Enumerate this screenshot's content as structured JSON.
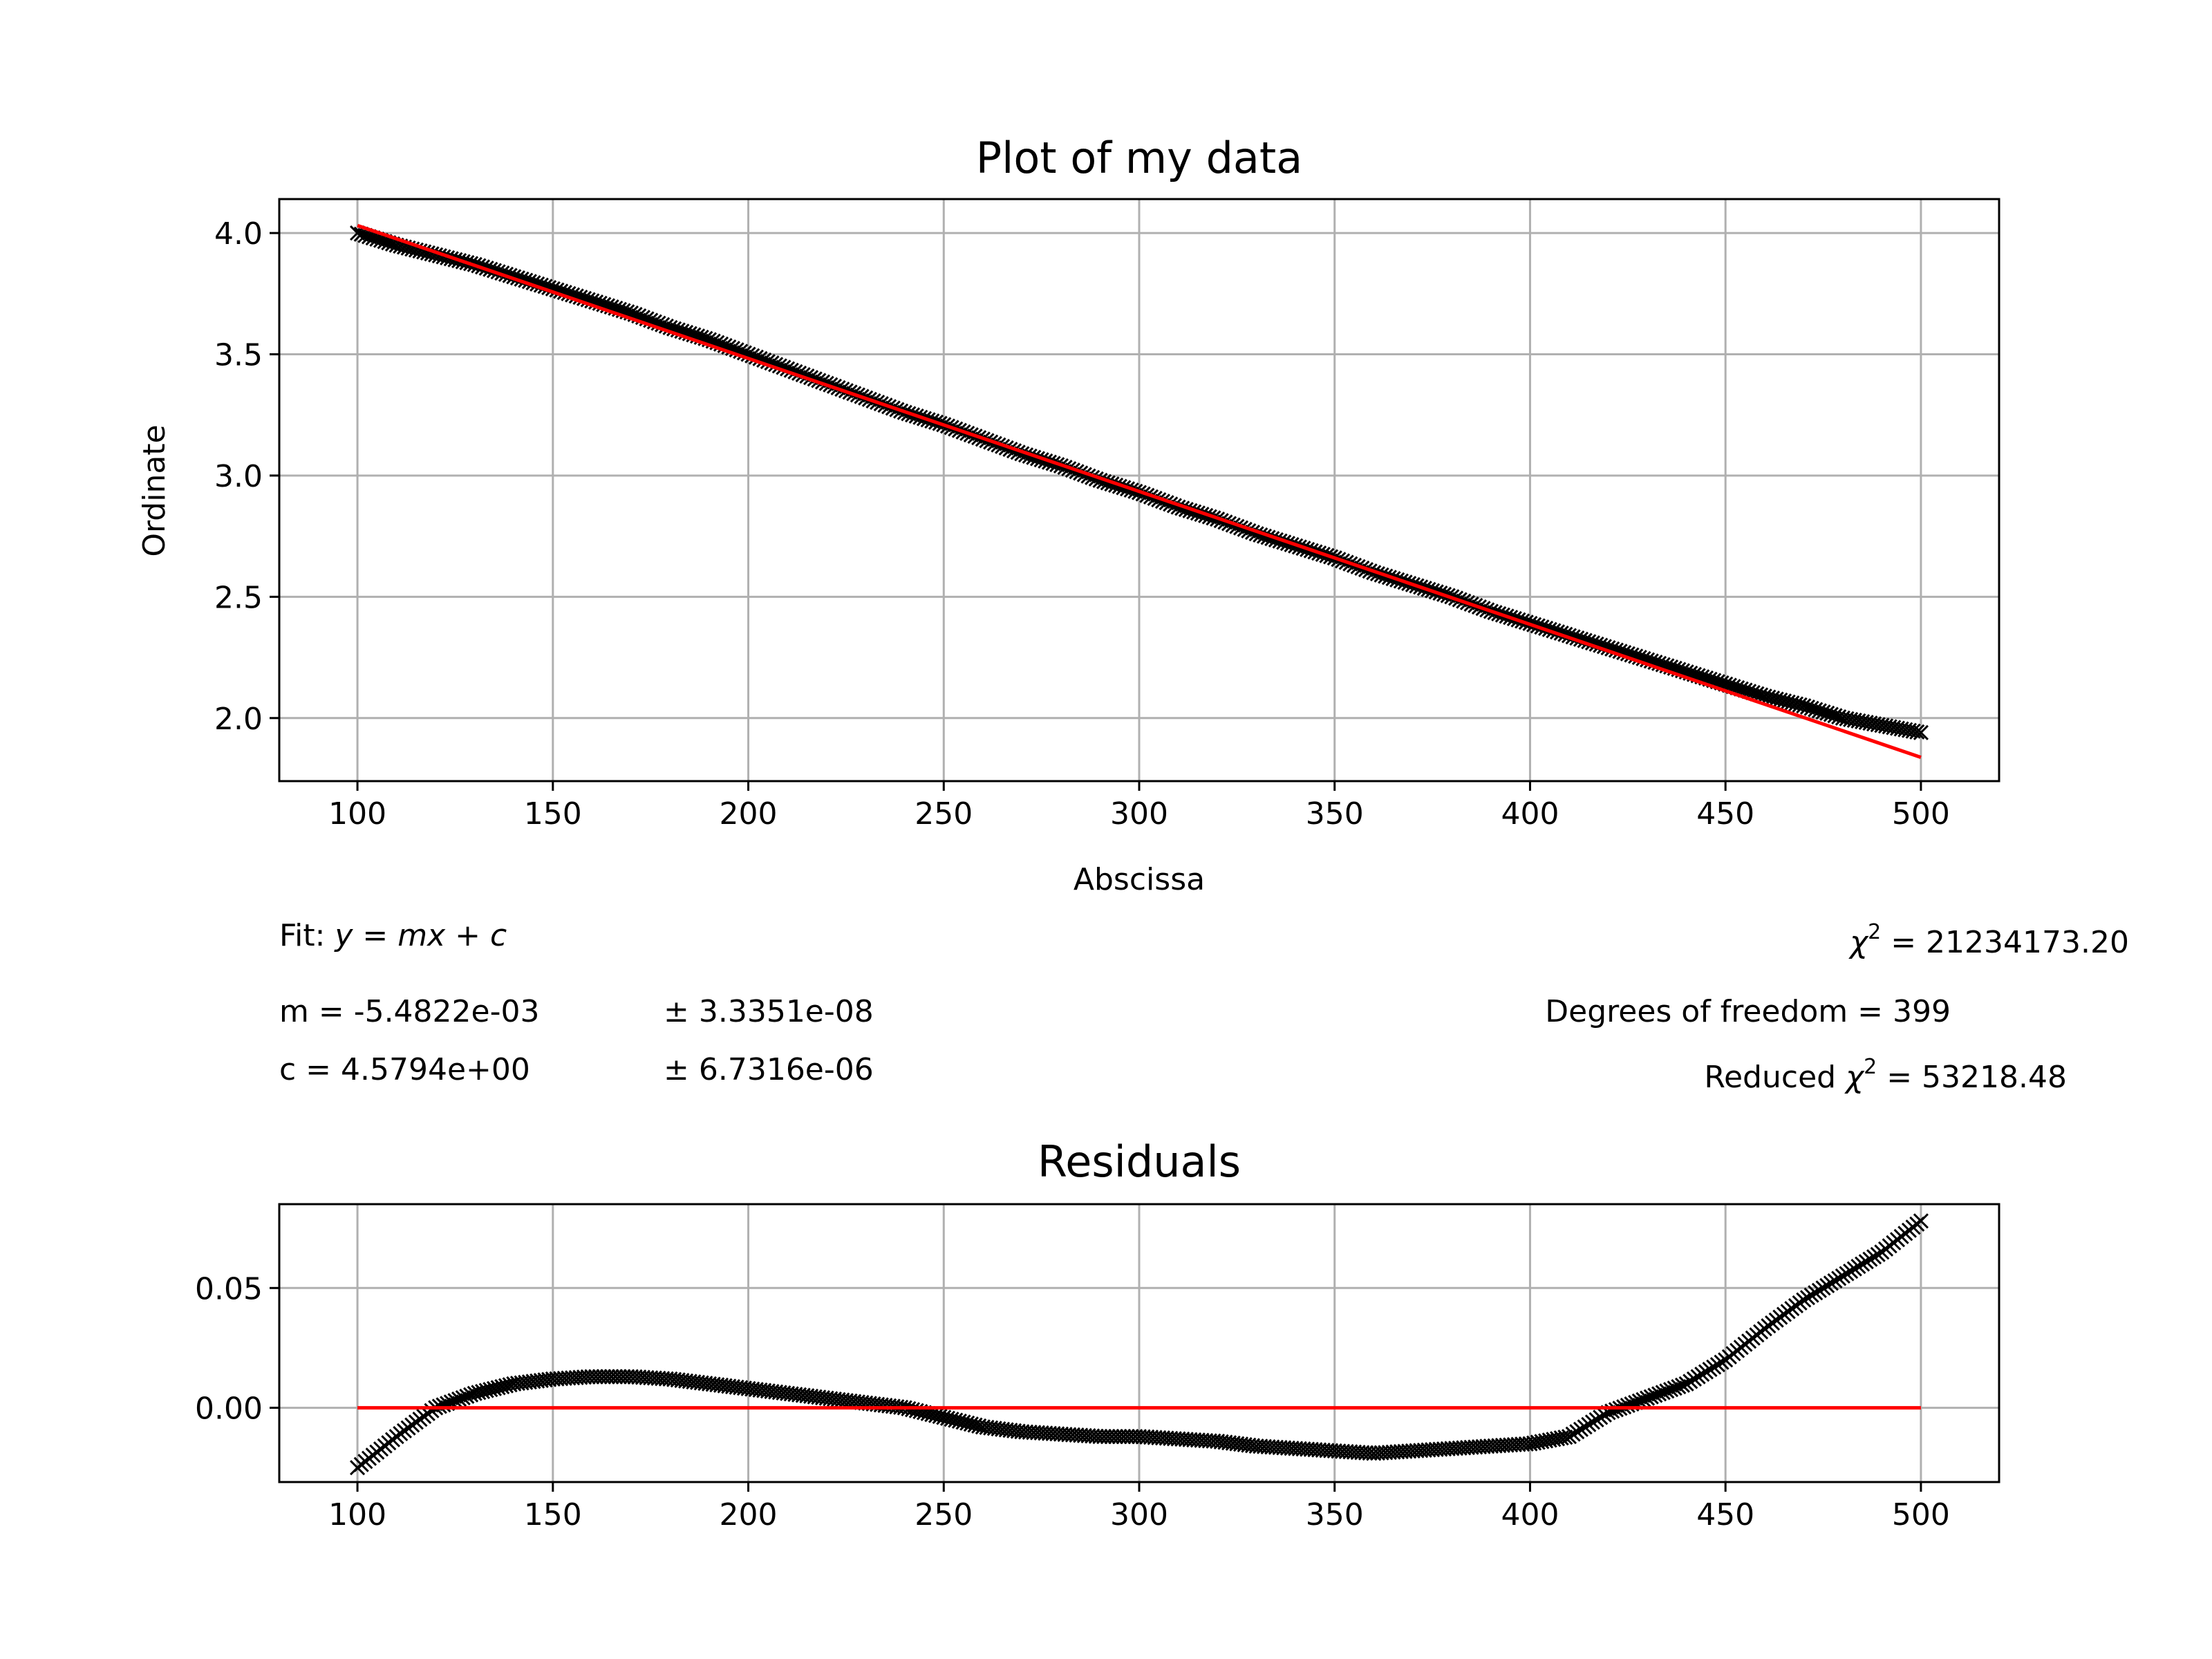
{
  "chart_data": [
    {
      "type": "scatter",
      "title": "Plot of my data",
      "xlabel": "Abscissa",
      "ylabel": "Ordinate",
      "xlim": [
        80,
        520
      ],
      "ylim": [
        1.74,
        4.14
      ],
      "xticks": [
        100,
        150,
        200,
        250,
        300,
        350,
        400,
        450,
        500
      ],
      "xtick_labels": [
        "100",
        "150",
        "200",
        "250",
        "300",
        "350",
        "400",
        "450",
        "500"
      ],
      "yticks": [
        2.0,
        2.5,
        3.0,
        3.5,
        4.0
      ],
      "ytick_labels": [
        "2.0",
        "2.5",
        "3.0",
        "3.5",
        "4.0"
      ],
      "grid": true,
      "marker": "x",
      "data_color": "#000000",
      "fit_color": "#ff0000",
      "series": [
        {
          "kind": "data",
          "x": [
            100,
            110,
            120,
            130,
            140,
            150,
            160,
            170,
            180,
            190,
            200,
            210,
            220,
            230,
            240,
            250,
            260,
            270,
            280,
            290,
            300,
            310,
            320,
            330,
            340,
            350,
            360,
            370,
            380,
            390,
            400,
            410,
            420,
            430,
            440,
            450,
            460,
            470,
            480,
            490,
            500
          ],
          "y": [
            4.0,
            3.95,
            3.91,
            3.87,
            3.82,
            3.77,
            3.72,
            3.67,
            3.61,
            3.56,
            3.5,
            3.44,
            3.38,
            3.32,
            3.26,
            3.21,
            3.15,
            3.09,
            3.04,
            2.98,
            2.93,
            2.87,
            2.82,
            2.76,
            2.71,
            2.66,
            2.6,
            2.55,
            2.5,
            2.44,
            2.39,
            2.34,
            2.29,
            2.24,
            2.19,
            2.14,
            2.09,
            2.05,
            2.0,
            1.97,
            1.94
          ]
        },
        {
          "kind": "fit",
          "x": [
            100,
            500
          ],
          "y": [
            4.031,
            1.838
          ]
        }
      ]
    },
    {
      "type": "scatter",
      "title": "Residuals",
      "xlabel": "",
      "ylabel": "",
      "xlim": [
        80,
        520
      ],
      "ylim": [
        -0.031,
        0.085
      ],
      "xticks": [
        100,
        150,
        200,
        250,
        300,
        350,
        400,
        450,
        500
      ],
      "xtick_labels": [
        "100",
        "150",
        "200",
        "250",
        "300",
        "350",
        "400",
        "450",
        "500"
      ],
      "yticks": [
        0.0,
        0.05
      ],
      "ytick_labels": [
        "0.00",
        "0.05"
      ],
      "grid": true,
      "marker": "x",
      "data_color": "#000000",
      "fit_color": "#ff0000",
      "series": [
        {
          "kind": "data",
          "x": [
            100,
            110,
            120,
            130,
            140,
            150,
            160,
            170,
            180,
            190,
            200,
            210,
            220,
            230,
            240,
            250,
            260,
            270,
            280,
            290,
            300,
            310,
            320,
            330,
            340,
            350,
            360,
            370,
            380,
            390,
            400,
            410,
            420,
            430,
            440,
            450,
            460,
            470,
            480,
            490,
            500
          ],
          "y": [
            -0.025,
            -0.012,
            0.0,
            0.006,
            0.01,
            0.012,
            0.013,
            0.013,
            0.012,
            0.01,
            0.008,
            0.006,
            0.004,
            0.002,
            0.0,
            -0.004,
            -0.008,
            -0.01,
            -0.011,
            -0.012,
            -0.012,
            -0.013,
            -0.014,
            -0.016,
            -0.017,
            -0.018,
            -0.019,
            -0.018,
            -0.017,
            -0.016,
            -0.015,
            -0.012,
            -0.002,
            0.004,
            0.01,
            0.02,
            0.033,
            0.045,
            0.055,
            0.065,
            0.078
          ]
        },
        {
          "kind": "zero-line",
          "x": [
            100,
            500
          ],
          "y": [
            0.0,
            0.0
          ]
        }
      ]
    }
  ],
  "fit_info": {
    "fit_prefix": "Fit: ",
    "fit_equation": "y = mx + c",
    "m_line": "m = -5.4822e-03",
    "m_err": "± 3.3351e-08",
    "c_line": "c = 4.5794e+00",
    "c_err": "± 6.7316e-06",
    "chi2_symbol": "χ",
    "chi2_value": " = 21234173.20",
    "dof_line": "Degrees of freedom = 399",
    "reduced_prefix": "Reduced ",
    "reduced_value": " = 53218.48",
    "superscript": "2"
  }
}
